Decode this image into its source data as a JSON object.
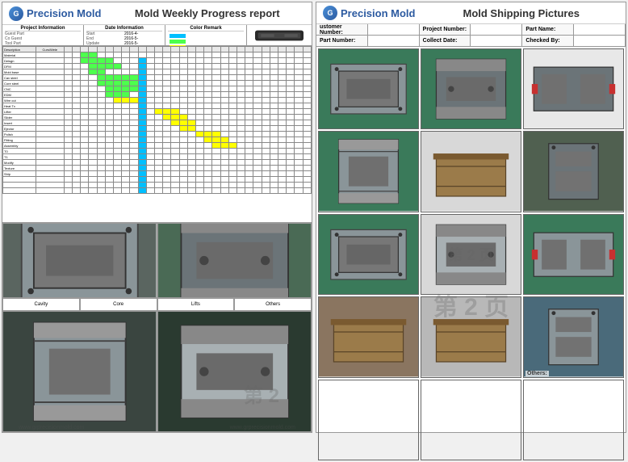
{
  "brand": {
    "icon_text": "G",
    "name": "Precision Mold"
  },
  "left_doc": {
    "title": "Mold Weekly Progress report",
    "info_sections": {
      "project": {
        "title": "Project Information",
        "rows": [
          {
            "l": "Guest Part",
            "v": ""
          },
          {
            "l": "Co Guest",
            "v": ""
          },
          {
            "l": "Tool Part",
            "v": ""
          },
          {
            "l": "Number",
            "v": ""
          }
        ]
      },
      "date": {
        "title": "Date Information",
        "rows": [
          {
            "l": "Start",
            "v": "2016-4-"
          },
          {
            "l": "End",
            "v": "2016-5-"
          },
          {
            "l": "Update",
            "v": "2016-5-"
          }
        ]
      },
      "color": {
        "title": "Color Remark",
        "items": [
          {
            "c": "#00bfff",
            "t": ""
          },
          {
            "c": "#4dff4d",
            "t": ""
          },
          {
            "c": "#ffff00",
            "t": ""
          }
        ]
      }
    },
    "gantt": {
      "desc_header": "Description",
      "name_header": "Curs/Wele",
      "week_groups": [
        "W1",
        "W2",
        "W3",
        "W4",
        "W5",
        "W6",
        "W7",
        "W8"
      ],
      "rows": [
        {
          "d": "Material",
          "bars": [
            {
              "s": 2,
              "e": 3,
              "c": "bar-green"
            }
          ]
        },
        {
          "d": "Deisgn",
          "bars": [
            {
              "s": 2,
              "e": 5,
              "c": "bar-green"
            },
            {
              "s": 9,
              "e": 9,
              "c": "bar-cyan"
            }
          ]
        },
        {
          "d": "DFM",
          "bars": [
            {
              "s": 3,
              "e": 6,
              "c": "bar-green"
            },
            {
              "s": 9,
              "e": 9,
              "c": "bar-cyan"
            }
          ]
        },
        {
          "d": "Mold base",
          "bars": [
            {
              "s": 3,
              "e": 4,
              "c": "bar-green"
            },
            {
              "s": 9,
              "e": 9,
              "c": "bar-cyan"
            }
          ]
        },
        {
          "d": "Cav steel",
          "bars": [
            {
              "s": 4,
              "e": 8,
              "c": "bar-green"
            },
            {
              "s": 9,
              "e": 9,
              "c": "bar-cyan"
            }
          ]
        },
        {
          "d": "Core steel",
          "bars": [
            {
              "s": 4,
              "e": 8,
              "c": "bar-green"
            },
            {
              "s": 9,
              "e": 9,
              "c": "bar-cyan"
            }
          ]
        },
        {
          "d": "CNC",
          "bars": [
            {
              "s": 5,
              "e": 9,
              "c": "bar-green"
            },
            {
              "s": 9,
              "e": 9,
              "c": "bar-cyan"
            }
          ]
        },
        {
          "d": "EDM",
          "bars": [
            {
              "s": 5,
              "e": 7,
              "c": "bar-green"
            },
            {
              "s": 9,
              "e": 9,
              "c": "bar-cyan"
            }
          ]
        },
        {
          "d": "Wire cut",
          "bars": [
            {
              "s": 6,
              "e": 8,
              "c": "bar-yellow"
            },
            {
              "s": 9,
              "e": 9,
              "c": "bar-cyan"
            }
          ]
        },
        {
          "d": "Heat Tx",
          "bars": [
            {
              "s": 9,
              "e": 9,
              "c": "bar-cyan"
            }
          ]
        },
        {
          "d": "Lifter",
          "bars": [
            {
              "s": 9,
              "e": 9,
              "c": "bar-cyan"
            },
            {
              "s": 11,
              "e": 13,
              "c": "bar-yellow"
            }
          ]
        },
        {
          "d": "Slider",
          "bars": [
            {
              "s": 9,
              "e": 9,
              "c": "bar-cyan"
            },
            {
              "s": 12,
              "e": 14,
              "c": "bar-yellow"
            }
          ]
        },
        {
          "d": "Insert",
          "bars": [
            {
              "s": 9,
              "e": 9,
              "c": "bar-cyan"
            },
            {
              "s": 13,
              "e": 15,
              "c": "bar-yellow"
            }
          ]
        },
        {
          "d": "Ejector",
          "bars": [
            {
              "s": 9,
              "e": 9,
              "c": "bar-cyan"
            },
            {
              "s": 14,
              "e": 15,
              "c": "bar-yellow"
            }
          ]
        },
        {
          "d": "Polish",
          "bars": [
            {
              "s": 9,
              "e": 9,
              "c": "bar-cyan"
            },
            {
              "s": 16,
              "e": 18,
              "c": "bar-yellow"
            }
          ]
        },
        {
          "d": "Fitting",
          "bars": [
            {
              "s": 9,
              "e": 9,
              "c": "bar-cyan"
            },
            {
              "s": 17,
              "e": 19,
              "c": "bar-yellow"
            }
          ]
        },
        {
          "d": "Assembly",
          "bars": [
            {
              "s": 9,
              "e": 9,
              "c": "bar-cyan"
            },
            {
              "s": 18,
              "e": 20,
              "c": "bar-yellow"
            }
          ]
        },
        {
          "d": "T0",
          "bars": [
            {
              "s": 9,
              "e": 9,
              "c": "bar-cyan"
            }
          ]
        },
        {
          "d": "T1",
          "bars": [
            {
              "s": 9,
              "e": 9,
              "c": "bar-cyan"
            }
          ]
        },
        {
          "d": "Modify",
          "bars": [
            {
              "s": 9,
              "e": 9,
              "c": "bar-cyan"
            }
          ]
        },
        {
          "d": "Texture",
          "bars": [
            {
              "s": 9,
              "e": 9,
              "c": "bar-cyan"
            }
          ]
        },
        {
          "d": "Ship",
          "bars": [
            {
              "s": 9,
              "e": 9,
              "c": "bar-cyan"
            }
          ]
        },
        {
          "d": "",
          "bars": [
            {
              "s": 9,
              "e": 9,
              "c": "bar-cyan"
            }
          ]
        },
        {
          "d": "",
          "bars": [
            {
              "s": 9,
              "e": 9,
              "c": "bar-cyan"
            }
          ]
        },
        {
          "d": "",
          "bars": [
            {
              "s": 9,
              "e": 9,
              "c": "bar-cyan"
            }
          ]
        }
      ],
      "num_weeks": 30
    },
    "photo_labels": [
      "Cavity",
      "Core",
      "Lifts",
      "Others"
    ],
    "watermark": "第 2",
    "url": "www.grprecisionmold.com"
  },
  "right_doc": {
    "title": "Mold Shipping Pictures",
    "form": [
      {
        "l": "ustomer Number:",
        "v": ""
      },
      {
        "l": "Project Number:",
        "v": ""
      },
      {
        "l": "Part Name:",
        "v": ""
      },
      {
        "l": "Part Number:",
        "v": ""
      },
      {
        "l": "Collect Date:",
        "v": ""
      },
      {
        "l": "Checked By:",
        "v": ""
      }
    ],
    "pic_labels": [
      "",
      "",
      "",
      "",
      "",
      "",
      "",
      "",
      "",
      "",
      "",
      "Others:"
    ],
    "watermark": "第 2 页",
    "mold_colors": {
      "steel1": "#8a9599",
      "steel2": "#6b7478",
      "steel3": "#a8b0b3",
      "green_bg": "#3a7a5a",
      "dark_bg": "#2a3530",
      "wood": "#9b7b4a",
      "red": "#c73030",
      "blue": "#3a5a8a"
    }
  }
}
